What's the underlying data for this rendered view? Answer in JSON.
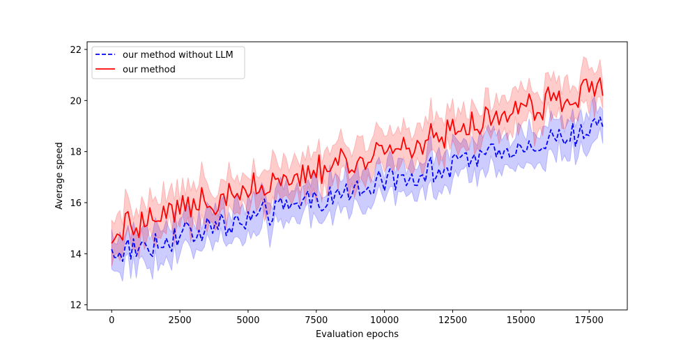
{
  "chart_data": {
    "type": "line",
    "title": "",
    "xlabel": "Evaluation epochs",
    "ylabel": "Average speed",
    "xlim": [
      -900,
      18900
    ],
    "ylim": [
      11.8,
      22.3
    ],
    "x_ticks": [
      0,
      2500,
      5000,
      7500,
      10000,
      12500,
      15000,
      17500
    ],
    "x_tick_labels": [
      "0",
      "2500",
      "5000",
      "7500",
      "10000",
      "12500",
      "15000",
      "17500"
    ],
    "y_ticks": [
      12,
      14,
      16,
      18,
      20,
      22
    ],
    "y_tick_labels": [
      "12",
      "14",
      "16",
      "18",
      "20",
      "22"
    ],
    "grid": false,
    "legend_position": "top-left",
    "x_start": 0,
    "x_step": 100,
    "band_alpha": 0.2,
    "series": [
      {
        "name": "our method without LLM",
        "color": "#0000ff",
        "linestyle": "dashed",
        "trend_start": 14.0,
        "trend_end": 19.0,
        "noise_amplitude": 0.6,
        "band_halfwidth": 0.65
      },
      {
        "name": "our method",
        "color": "#ff0000",
        "linestyle": "solid",
        "trend_start": 15.0,
        "trend_end": 20.5,
        "noise_amplitude": 0.7,
        "band_halfwidth": 0.75
      }
    ]
  }
}
